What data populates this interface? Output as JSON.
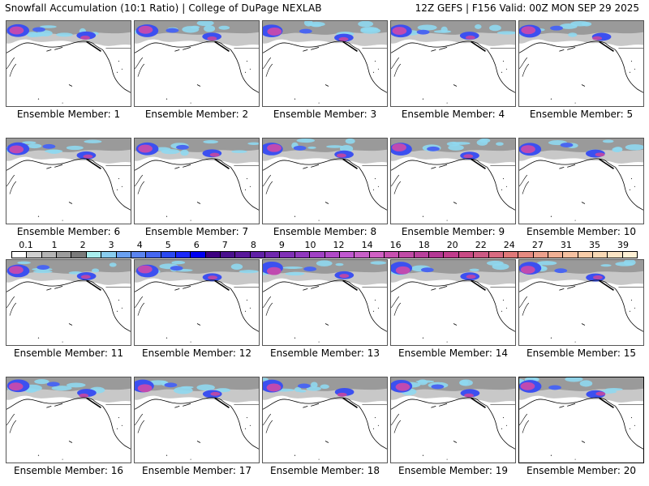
{
  "header": {
    "title_left": "Snowfall Accumulation (10:1 Ratio) | College of DuPage NEXLAB",
    "title_right": "12Z GEFS | F156 Valid: 00Z MON SEP 29 2025"
  },
  "panels": [
    {
      "label": "Ensemble Member: 1"
    },
    {
      "label": "Ensemble Member: 2"
    },
    {
      "label": "Ensemble Member: 3"
    },
    {
      "label": "Ensemble Member: 4"
    },
    {
      "label": "Ensemble Member: 5"
    },
    {
      "label": "Ensemble Member: 6"
    },
    {
      "label": "Ensemble Member: 7"
    },
    {
      "label": "Ensemble Member: 8"
    },
    {
      "label": "Ensemble Member: 9"
    },
    {
      "label": "Ensemble Member: 10"
    },
    {
      "label": "Ensemble Member: 11"
    },
    {
      "label": "Ensemble Member: 12"
    },
    {
      "label": "Ensemble Member: 13"
    },
    {
      "label": "Ensemble Member: 14"
    },
    {
      "label": "Ensemble Member: 15"
    },
    {
      "label": "Ensemble Member: 16"
    },
    {
      "label": "Ensemble Member: 17"
    },
    {
      "label": "Ensemble Member: 18"
    },
    {
      "label": "Ensemble Member: 19"
    },
    {
      "label": "Ensemble Member: 20"
    }
  ],
  "colorbar": {
    "tick_labels": [
      "0.1",
      "1",
      "2",
      "3",
      "4",
      "5",
      "6",
      "7",
      "8",
      "9",
      "10",
      "12",
      "14",
      "16",
      "18",
      "20",
      "22",
      "24",
      "27",
      "31",
      "35",
      "39"
    ],
    "colors": [
      "#ffffff",
      "#d0d0d0",
      "#b4b4b4",
      "#9c9c9c",
      "#7a7a7a",
      "#a8eeee",
      "#88ccee",
      "#6aa0f0",
      "#5a84f0",
      "#4466f0",
      "#2a48f0",
      "#1a28f8",
      "#0000f0",
      "#3c0080",
      "#4a108e",
      "#58189a",
      "#6020a6",
      "#7028ae",
      "#8030b6",
      "#9038be",
      "#a040c4",
      "#b048c8",
      "#c058d0",
      "#c860c8",
      "#d060c4",
      "#c850b0",
      "#c04aa6",
      "#b8409c",
      "#b43894",
      "#c03c8c",
      "#c84a84",
      "#cc5a84",
      "#d86a80",
      "#e07878",
      "#e68a80",
      "#eca08c",
      "#f0b094",
      "#f4c0a0",
      "#f8cca8",
      "#f8d8b4",
      "#fce4c4",
      "#fff0d4"
    ]
  }
}
